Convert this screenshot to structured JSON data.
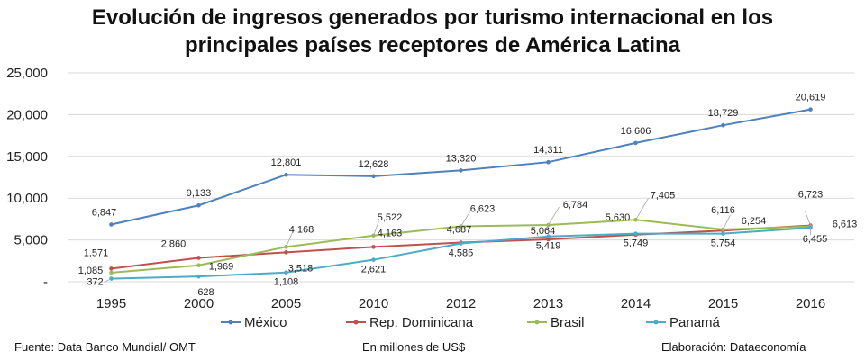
{
  "chart_data": {
    "type": "line",
    "title": "Evolución de ingresos generados por turismo internacional en los principales países receptores de América Latina",
    "title_lines": [
      "Evolución de ingresos generados por turismo internacional en los",
      "principales países receptores de América Latina"
    ],
    "categories": [
      "1995",
      "2000",
      "2005",
      "2010",
      "2012",
      "2013",
      "2014",
      "2015",
      "2016"
    ],
    "y_ticks": [
      0,
      5000,
      10000,
      15000,
      20000,
      25000
    ],
    "y_tick_labels": [
      "-",
      "5,000",
      "10,000",
      "15,000",
      "20,000",
      "25,000"
    ],
    "ylim": [
      0,
      25000
    ],
    "grid": true,
    "legend_position": "bottom",
    "series": [
      {
        "name": "México",
        "color": "#4f81bd",
        "values": [
          6847,
          9133,
          12801,
          12628,
          13320,
          14311,
          16606,
          18729,
          20619
        ],
        "labels": [
          "6,847",
          "9,133",
          "12,801",
          "12,628",
          "13,320",
          "14,311",
          "16,606",
          "18,729",
          "20,619"
        ]
      },
      {
        "name": "Rep. Dominicana",
        "color": "#c0504d",
        "values": [
          1571,
          2860,
          3518,
          4163,
          4687,
          5064,
          5630,
          6116,
          6723
        ],
        "labels": [
          "1,571",
          "2,860",
          "3,518",
          "4,163",
          "4,687",
          "5,064",
          "5,630",
          "6,116",
          "6,723"
        ]
      },
      {
        "name": "Brasil",
        "color": "#9bbb59",
        "values": [
          1085,
          1969,
          4168,
          5522,
          6623,
          6784,
          7405,
          6254,
          6613
        ],
        "labels": [
          "1,085",
          "1,969",
          "4,168",
          "5,522",
          "6,623",
          "6,784",
          "7,405",
          "6,254",
          "6,613"
        ]
      },
      {
        "name": "Panamá",
        "color": "#4bacc6",
        "values": [
          372,
          628,
          1108,
          2621,
          4585,
          5419,
          5749,
          5754,
          6455
        ],
        "labels": [
          "372",
          "628",
          "1,108",
          "2,621",
          "4,585",
          "5,419",
          "5,749",
          "5,754",
          "6,455"
        ]
      }
    ]
  },
  "footer": {
    "source": "Fuente: Data Banco Mundial/ OMT",
    "units": "En millones de US$",
    "credit": "Elaboración: Dataeconomía"
  }
}
